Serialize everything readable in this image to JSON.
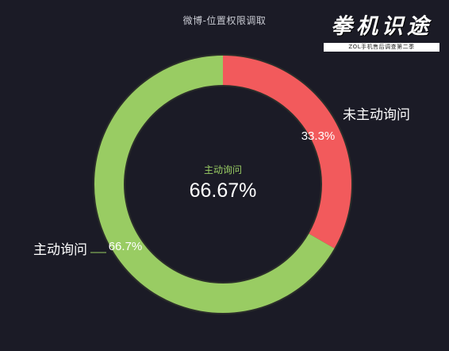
{
  "chart_data": {
    "type": "pie",
    "variant": "donut",
    "title": "微博-位置权限调取",
    "categories": [
      "未主动询问",
      "主动询问"
    ],
    "values": [
      33.3,
      66.7
    ],
    "value_labels": [
      "33.3%",
      "66.7%"
    ],
    "colors": [
      "#f25a5c",
      "#99cc63"
    ],
    "center_label": "主动询问",
    "center_value": "66.67%",
    "center_label_color": "#99cc63"
  },
  "watermark": {
    "logo_text": "拳机识途",
    "subtitle": "ZOL手机售后调查第二季"
  }
}
